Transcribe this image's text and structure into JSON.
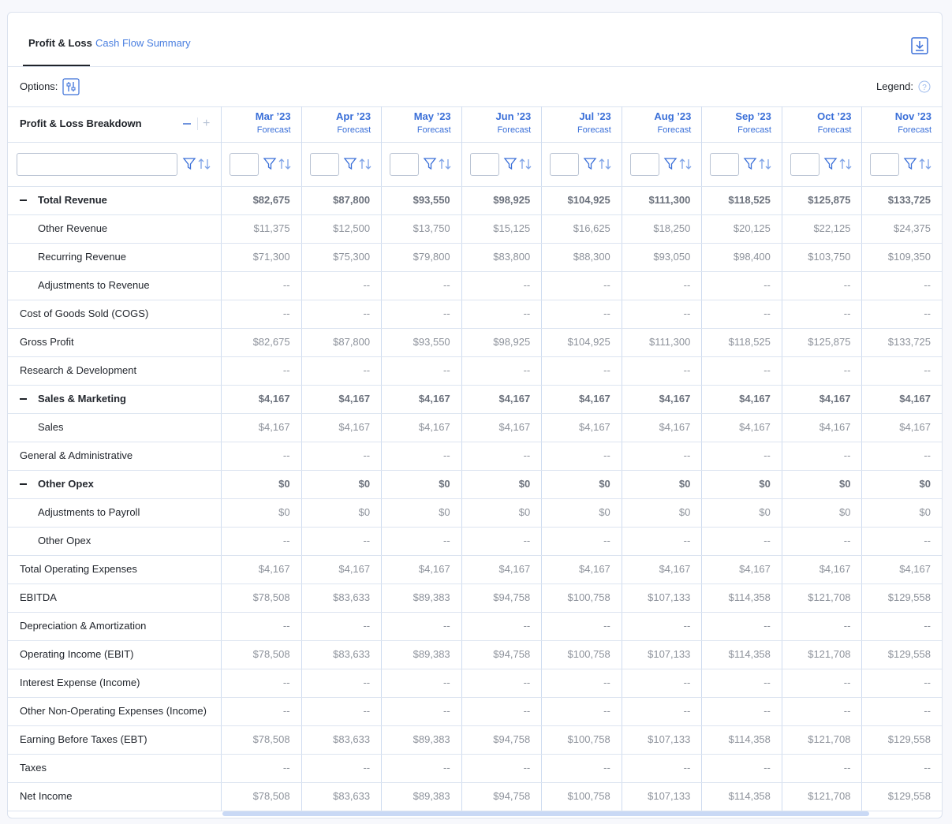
{
  "tabs": [
    "Profit & Loss",
    "Cash Flow Summary"
  ],
  "options_label": "Options:",
  "legend_label": "Legend:",
  "table": {
    "header": "Profit & Loss Breakdown",
    "columns": [
      {
        "month": "Mar ’23",
        "scenario": "Forecast"
      },
      {
        "month": "Apr ’23",
        "scenario": "Forecast"
      },
      {
        "month": "May ’23",
        "scenario": "Forecast"
      },
      {
        "month": "Jun ’23",
        "scenario": "Forecast"
      },
      {
        "month": "Jul ’23",
        "scenario": "Forecast"
      },
      {
        "month": "Aug ’23",
        "scenario": "Forecast"
      },
      {
        "month": "Sep ’23",
        "scenario": "Forecast"
      },
      {
        "month": "Oct ’23",
        "scenario": "Forecast"
      },
      {
        "month": "Nov ’23",
        "scenario": "Forecast"
      }
    ],
    "rows": [
      {
        "label": "Total Revenue",
        "kind": "group",
        "values": [
          "$82,675",
          "$87,800",
          "$93,550",
          "$98,925",
          "$104,925",
          "$111,300",
          "$118,525",
          "$125,875",
          "$133,725"
        ]
      },
      {
        "label": "Other Revenue",
        "kind": "child",
        "values": [
          "$11,375",
          "$12,500",
          "$13,750",
          "$15,125",
          "$16,625",
          "$18,250",
          "$20,125",
          "$22,125",
          "$24,375"
        ]
      },
      {
        "label": "Recurring Revenue",
        "kind": "child",
        "values": [
          "$71,300",
          "$75,300",
          "$79,800",
          "$83,800",
          "$88,300",
          "$93,050",
          "$98,400",
          "$103,750",
          "$109,350"
        ]
      },
      {
        "label": "Adjustments to Revenue",
        "kind": "child",
        "values": [
          "--",
          "--",
          "--",
          "--",
          "--",
          "--",
          "--",
          "--",
          "--"
        ]
      },
      {
        "label": "Cost of Goods Sold (COGS)",
        "kind": "item",
        "values": [
          "--",
          "--",
          "--",
          "--",
          "--",
          "--",
          "--",
          "--",
          "--"
        ]
      },
      {
        "label": "Gross Profit",
        "kind": "item",
        "values": [
          "$82,675",
          "$87,800",
          "$93,550",
          "$98,925",
          "$104,925",
          "$111,300",
          "$118,525",
          "$125,875",
          "$133,725"
        ]
      },
      {
        "label": "Research & Development",
        "kind": "item",
        "values": [
          "--",
          "--",
          "--",
          "--",
          "--",
          "--",
          "--",
          "--",
          "--"
        ]
      },
      {
        "label": "Sales & Marketing",
        "kind": "group",
        "values": [
          "$4,167",
          "$4,167",
          "$4,167",
          "$4,167",
          "$4,167",
          "$4,167",
          "$4,167",
          "$4,167",
          "$4,167"
        ]
      },
      {
        "label": "Sales",
        "kind": "child",
        "values": [
          "$4,167",
          "$4,167",
          "$4,167",
          "$4,167",
          "$4,167",
          "$4,167",
          "$4,167",
          "$4,167",
          "$4,167"
        ]
      },
      {
        "label": "General & Administrative",
        "kind": "item",
        "values": [
          "--",
          "--",
          "--",
          "--",
          "--",
          "--",
          "--",
          "--",
          "--"
        ]
      },
      {
        "label": "Other Opex",
        "kind": "group",
        "values": [
          "$0",
          "$0",
          "$0",
          "$0",
          "$0",
          "$0",
          "$0",
          "$0",
          "$0"
        ]
      },
      {
        "label": "Adjustments to Payroll",
        "kind": "child",
        "values": [
          "$0",
          "$0",
          "$0",
          "$0",
          "$0",
          "$0",
          "$0",
          "$0",
          "$0"
        ]
      },
      {
        "label": "Other Opex",
        "kind": "child",
        "values": [
          "--",
          "--",
          "--",
          "--",
          "--",
          "--",
          "--",
          "--",
          "--"
        ]
      },
      {
        "label": "Total Operating Expenses",
        "kind": "item",
        "values": [
          "$4,167",
          "$4,167",
          "$4,167",
          "$4,167",
          "$4,167",
          "$4,167",
          "$4,167",
          "$4,167",
          "$4,167"
        ]
      },
      {
        "label": "EBITDA",
        "kind": "item",
        "values": [
          "$78,508",
          "$83,633",
          "$89,383",
          "$94,758",
          "$100,758",
          "$107,133",
          "$114,358",
          "$121,708",
          "$129,558"
        ]
      },
      {
        "label": "Depreciation & Amortization",
        "kind": "item",
        "values": [
          "--",
          "--",
          "--",
          "--",
          "--",
          "--",
          "--",
          "--",
          "--"
        ]
      },
      {
        "label": "Operating Income (EBIT)",
        "kind": "item",
        "values": [
          "$78,508",
          "$83,633",
          "$89,383",
          "$94,758",
          "$100,758",
          "$107,133",
          "$114,358",
          "$121,708",
          "$129,558"
        ]
      },
      {
        "label": "Interest Expense (Income)",
        "kind": "item",
        "values": [
          "--",
          "--",
          "--",
          "--",
          "--",
          "--",
          "--",
          "--",
          "--"
        ]
      },
      {
        "label": "Other Non-Operating Expenses (Income)",
        "kind": "item",
        "values": [
          "--",
          "--",
          "--",
          "--",
          "--",
          "--",
          "--",
          "--",
          "--"
        ]
      },
      {
        "label": "Earning Before Taxes (EBT)",
        "kind": "item",
        "values": [
          "$78,508",
          "$83,633",
          "$89,383",
          "$94,758",
          "$100,758",
          "$107,133",
          "$114,358",
          "$121,708",
          "$129,558"
        ]
      },
      {
        "label": "Taxes",
        "kind": "item",
        "values": [
          "--",
          "--",
          "--",
          "--",
          "--",
          "--",
          "--",
          "--",
          "--"
        ]
      },
      {
        "label": "Net Income",
        "kind": "item",
        "values": [
          "$78,508",
          "$83,633",
          "$89,383",
          "$94,758",
          "$100,758",
          "$107,133",
          "$114,358",
          "$121,708",
          "$129,558"
        ]
      }
    ]
  }
}
